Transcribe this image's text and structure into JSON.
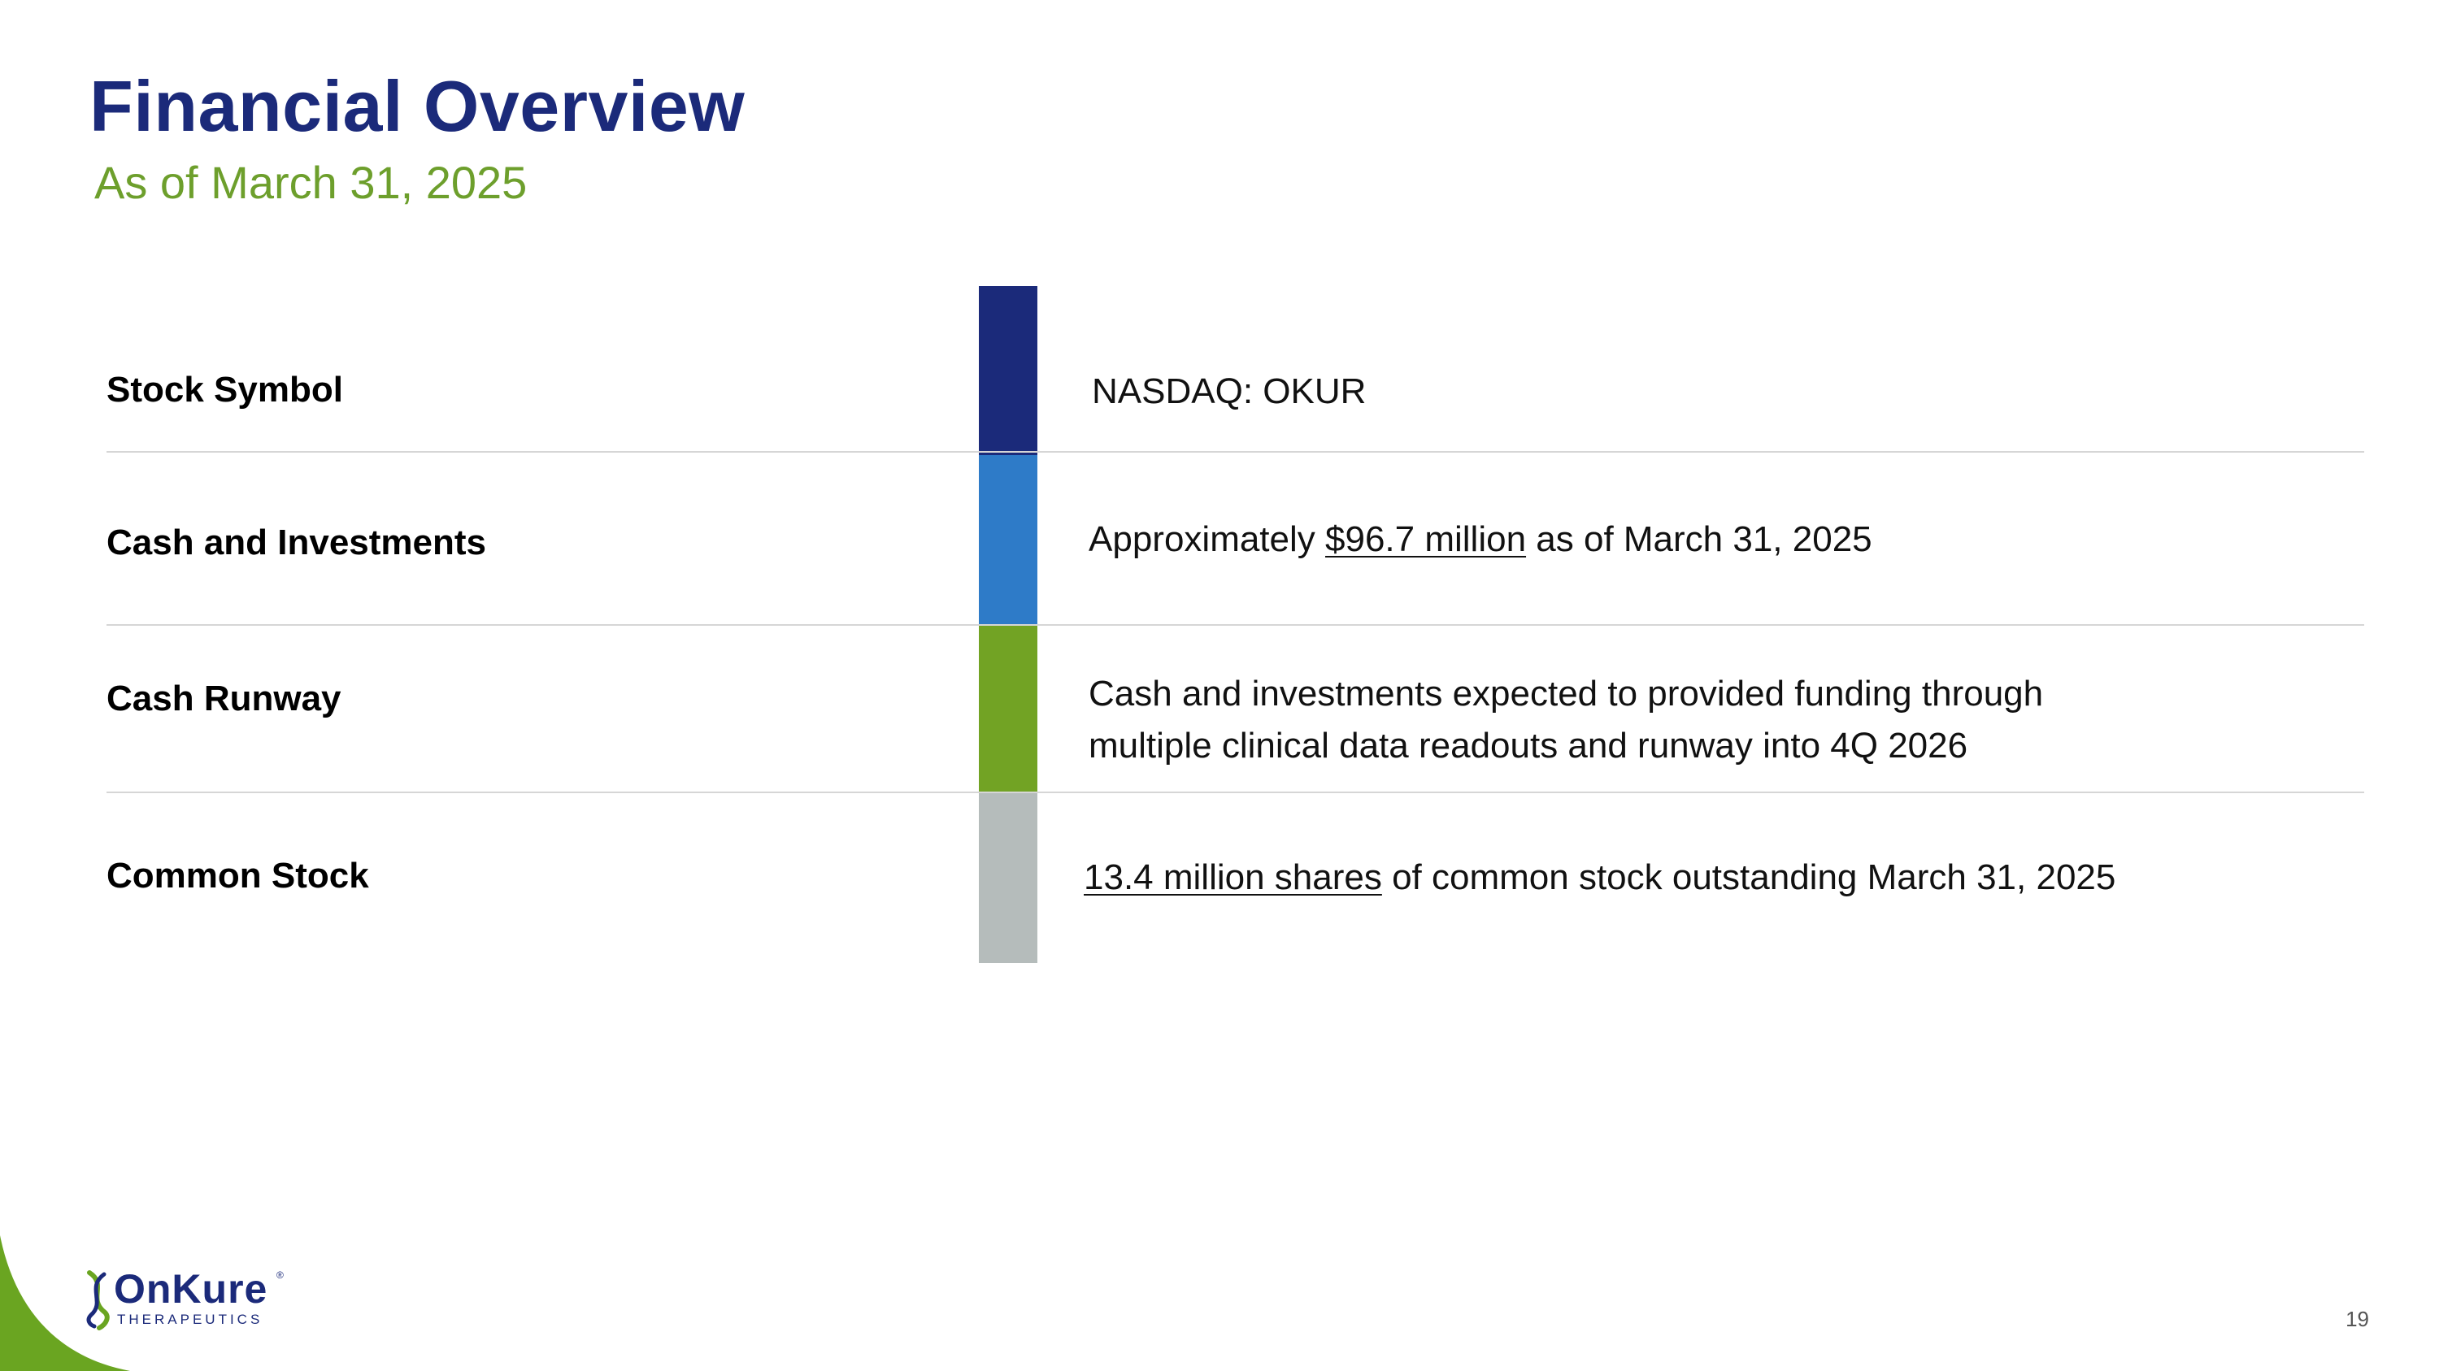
{
  "title": "Financial Overview",
  "subtitle": "As of March 31, 2025",
  "rows": [
    {
      "label": "Stock Symbol",
      "value_plain": "NASDAQ: OKUR",
      "bar_color": "#1b2a7a"
    },
    {
      "label": "Cash and Investments",
      "value_prefix": "Approximately ",
      "value_link": "$96.7 million",
      "value_suffix": " as of March 31, 2025",
      "bar_color": "#2e7bc8"
    },
    {
      "label": "Cash Runway",
      "value_line1": "Cash and investments expected to provided funding through",
      "value_line2": "multiple clinical data readouts and runway into 4Q 2026",
      "bar_color": "#72a324"
    },
    {
      "label": "Common Stock",
      "value_link": "13.4 million shares",
      "value_suffix": " of common stock outstanding March 31, 2025",
      "bar_color": "#b5bcbb"
    }
  ],
  "footer": {
    "logo_name": "OnKure",
    "logo_tagline": "THERAPEUTICS",
    "logo_reg": "®",
    "page_number": "19"
  },
  "colors": {
    "title": "#1b2a7a",
    "subtitle": "#6d9f2c",
    "accent_green": "#6aa521"
  }
}
